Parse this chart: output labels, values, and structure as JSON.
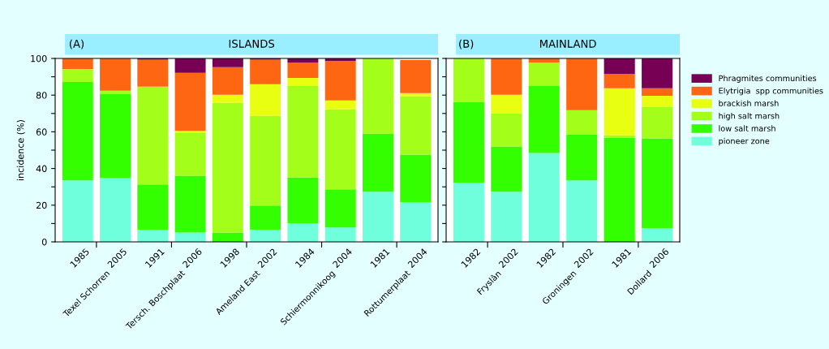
{
  "chart_data": [
    {
      "type": "bar",
      "stacked": true,
      "title": "(A)",
      "subtitle": "ISLANDS",
      "ylabel": "incidence (%)",
      "categories": [
        "1985",
        "2005",
        "1991",
        "2006",
        "1998",
        "2002",
        "1984",
        "2004",
        "1981",
        "2004"
      ],
      "annotations": [
        "Texel Schorren",
        "Tersch. Boschplaat",
        "Ameland East",
        "Schiermonnikoog",
        "Rottumerplaat"
      ],
      "ylim": [
        0,
        100
      ],
      "yticks": [
        0,
        {
          "value": 10,
          "label": null
        },
        20,
        {
          "value": 30,
          "label": null
        },
        40,
        {
          "value": 50,
          "label": null
        },
        60,
        {
          "value": 70,
          "label": null
        },
        80,
        {
          "value": 90,
          "label": null
        },
        100
      ],
      "legend": false,
      "grid": false,
      "series": [
        {
          "color": "#70ffdd",
          "values": [
            33.5,
            34.8,
            6.6,
            5.1,
            null,
            6.6,
            10.1,
            7.9,
            27.3,
            21.6
          ]
        },
        {
          "color": "#33ff00",
          "values": [
            53.7,
            46.0,
            24.7,
            31.0,
            5.1,
            13.2,
            25.1,
            20.7,
            31.7,
            26.0
          ]
        },
        {
          "color": "#a3ff19",
          "values": [
            7.1,
            1.6,
            53.3,
            23.5,
            70.7,
            48.9,
            49.8,
            43.6,
            41.0,
            31.7
          ]
        },
        {
          "color": "#e8ff11",
          "values": [
            0,
            0,
            0,
            0.9,
            4.4,
            17.2,
            4.4,
            4.9,
            0,
            1.8
          ]
        },
        {
          "color": "#ff6611",
          "values": [
            5.7,
            17.6,
            14.7,
            31.6,
            15.0,
            13.4,
            8.4,
            21.6,
            0,
            18.0
          ]
        },
        {
          "color": "#770055",
          "values": [
            0,
            0,
            0.7,
            7.9,
            4.8,
            0.7,
            2.2,
            1.3,
            0,
            null
          ]
        }
      ]
    },
    {
      "type": "bar",
      "stacked": true,
      "title": "(B)",
      "subtitle": "MAINLAND",
      "categories": [
        "1982",
        "2002",
        "1982",
        "2002",
        "1981",
        "2006"
      ],
      "annotations": [
        "Fryslân",
        "Groningen",
        "Dollard"
      ],
      "ylim": [
        0,
        100
      ],
      "yticks": [
        {
          "value": 0,
          "label": null
        },
        {
          "value": 10,
          "label": null
        },
        {
          "value": 20,
          "label": null
        },
        {
          "value": 30,
          "label": null
        },
        {
          "value": 40,
          "label": null
        },
        {
          "value": 50,
          "label": null
        },
        {
          "value": 60,
          "label": null
        },
        {
          "value": 70,
          "label": null
        },
        {
          "value": 80,
          "label": null
        },
        {
          "value": 90,
          "label": null
        },
        {
          "value": 100,
          "label": null
        }
      ],
      "tick_labels": "x",
      "legend": "right",
      "grid": false,
      "series": [
        {
          "name": "pioneer zone",
          "color": "#70ffdd",
          "values": [
            32.2,
            27.3,
            48.5,
            33.5,
            0,
            7.5
          ]
        },
        {
          "name": "low salt marsh",
          "color": "#33ff00",
          "values": [
            44.0,
            24.7,
            36.5,
            25.1,
            56.8,
            48.9
          ]
        },
        {
          "name": "high salt marsh",
          "color": "#a3ff19",
          "values": [
            23.8,
            18.0,
            12.8,
            13.2,
            1.3,
            17.2
          ]
        },
        {
          "name": "brackish marsh",
          "color": "#e8ff11",
          "values": [
            0,
            10.2,
            0,
            0,
            25.6,
            6.1
          ]
        },
        {
          "name": "Elytrigia  spp communities",
          "color": "#ff6611",
          "values": [
            0,
            19.8,
            2.2,
            28.2,
            7.9,
            4.0
          ]
        },
        {
          "name": "Phragmites communities",
          "color": "#770055",
          "values": [
            0,
            0,
            0,
            0,
            8.4,
            16.3
          ]
        }
      ]
    }
  ]
}
